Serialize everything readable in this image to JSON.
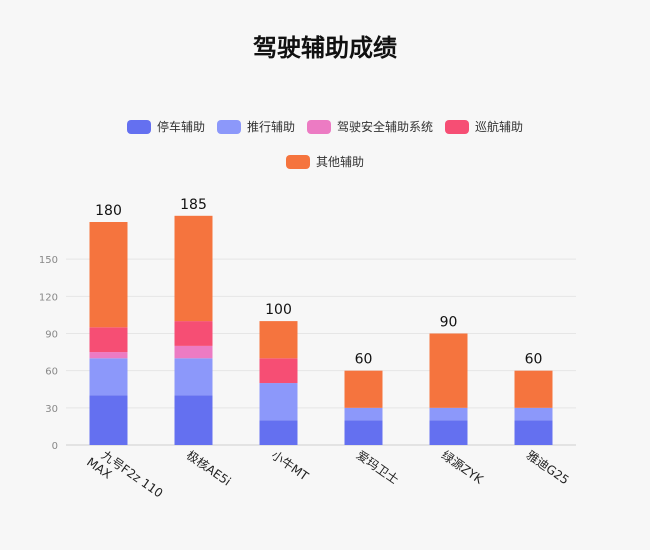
{
  "chart_data": {
    "type": "bar",
    "stacked": true,
    "title": "驾驶辅助成绩",
    "categories": [
      "九号F2z 110 MAX",
      "极核AE5i",
      "小牛MT",
      "爱玛卫士",
      "绿源ZYK",
      "雅迪G25"
    ],
    "series": [
      {
        "name": "停车辅助",
        "color": "#6470f0",
        "values": [
          40,
          40,
          20,
          20,
          20,
          20
        ]
      },
      {
        "name": "推行辅助",
        "color": "#8c98fa",
        "values": [
          30,
          30,
          30,
          10,
          10,
          10
        ]
      },
      {
        "name": "驾驶安全辅助系统",
        "color": "#ec7bc3",
        "values": [
          5,
          10,
          0,
          0,
          0,
          0
        ]
      },
      {
        "name": "巡航辅助",
        "color": "#f64e74",
        "values": [
          20,
          20,
          20,
          0,
          0,
          0
        ]
      },
      {
        "name": "其他辅助",
        "color": "#f5743e",
        "values": [
          85,
          85,
          30,
          30,
          60,
          30
        ]
      }
    ],
    "totals": [
      180,
      185,
      100,
      60,
      90,
      60
    ],
    "y_ticks": [
      0,
      30,
      60,
      90,
      120,
      150
    ],
    "ylim": [
      0,
      180
    ],
    "grid": true,
    "legend_position": "top"
  }
}
